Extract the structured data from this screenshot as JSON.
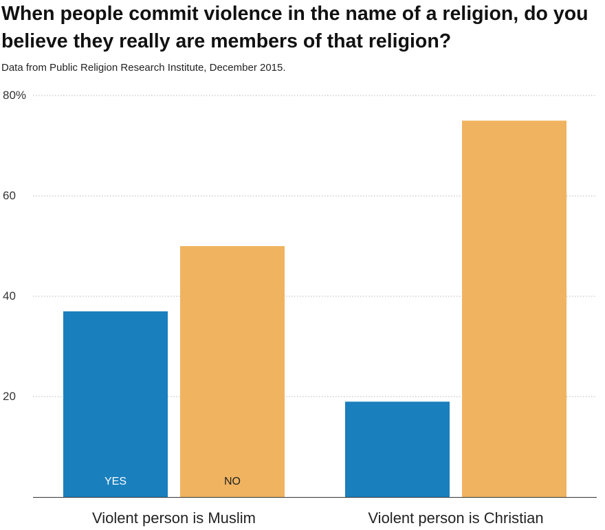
{
  "chart_data": {
    "type": "bar",
    "title": "When people commit violence in the name of a religion, do you believe they really are members of that religion?",
    "subtitle": "Data from Public Religion Research Institute, December 2015.",
    "categories": [
      "Violent person is Muslim",
      "Violent person is Christian"
    ],
    "series": [
      {
        "name": "YES",
        "values": [
          37,
          19
        ],
        "color": "#1a7fbd"
      },
      {
        "name": "NO",
        "values": [
          50,
          75
        ],
        "color": "#f0b460"
      }
    ],
    "ylim": [
      0,
      80
    ],
    "yticks": [
      20,
      40,
      60,
      80
    ],
    "ytick_labels": [
      "20",
      "40",
      "60",
      "80%"
    ],
    "grid": true,
    "legend": "inside bars"
  }
}
